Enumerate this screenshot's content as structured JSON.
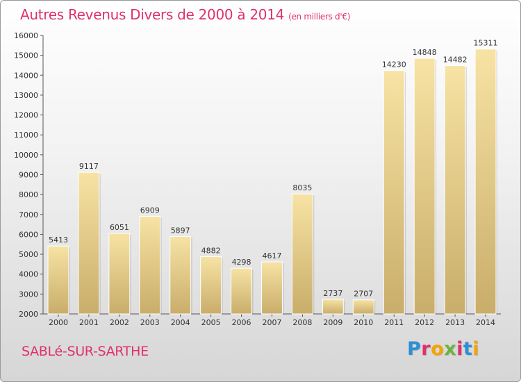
{
  "header": {
    "title": "Autres Revenus Divers de 2000 à 2014",
    "unit": "(en milliers d'€)"
  },
  "footer": {
    "city": "SABLé-SUR-SARTHE",
    "logo_letters": [
      "P",
      "r",
      "o",
      "x",
      "i",
      "t",
      "i"
    ]
  },
  "colors": {
    "title": "#e0306a",
    "bar_light": "#f7e3a4",
    "bar_dark": "#c9ad6a"
  },
  "chart_data": {
    "type": "bar",
    "title": "Autres Revenus Divers de 2000 à 2014",
    "xlabel": "",
    "ylabel": "",
    "categories": [
      "2000",
      "2001",
      "2002",
      "2003",
      "2004",
      "2005",
      "2006",
      "2007",
      "2008",
      "2009",
      "2010",
      "2011",
      "2012",
      "2013",
      "2014"
    ],
    "values": [
      5413,
      9117,
      6051,
      6909,
      5897,
      4882,
      4298,
      4617,
      8035,
      2737,
      2707,
      14230,
      14848,
      14482,
      15311
    ],
    "ylim": [
      2000,
      16000
    ],
    "yticks": [
      2000,
      3000,
      4000,
      5000,
      6000,
      7000,
      8000,
      9000,
      10000,
      11000,
      12000,
      13000,
      14000,
      15000,
      16000
    ],
    "grid": false,
    "data_labels": true
  }
}
